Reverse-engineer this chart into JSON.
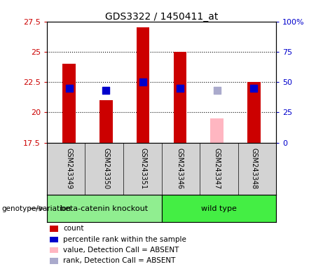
{
  "title": "GDS3322 / 1450411_at",
  "samples": [
    "GSM243349",
    "GSM243350",
    "GSM243351",
    "GSM243346",
    "GSM243347",
    "GSM243348"
  ],
  "count_values": [
    24.0,
    21.0,
    27.0,
    25.0,
    null,
    22.5
  ],
  "rank_values": [
    22.0,
    21.8,
    22.5,
    22.0,
    null,
    22.0
  ],
  "absent_value": [
    null,
    null,
    null,
    null,
    19.5,
    null
  ],
  "absent_rank": [
    null,
    null,
    null,
    null,
    21.8,
    null
  ],
  "ylim_left": [
    17.5,
    27.5
  ],
  "ylim_right": [
    0,
    100
  ],
  "yticks_left": [
    17.5,
    20.0,
    22.5,
    25.0,
    27.5
  ],
  "yticks_right": [
    0,
    25,
    50,
    75,
    100
  ],
  "ytick_labels_left": [
    "17.5",
    "20",
    "22.5",
    "25",
    "27.5"
  ],
  "ytick_labels_right": [
    "0",
    "25",
    "50",
    "75",
    "100%"
  ],
  "count_color": "#CC0000",
  "rank_color": "#0000CC",
  "absent_value_color": "#FFB6C1",
  "absent_rank_color": "#AAAACC",
  "bar_width": 0.35,
  "marker_size": 50,
  "grid_color": "black",
  "bg_plot": "#FFFFFF",
  "bg_table": "#D3D3D3",
  "group_colors": {
    "beta-catenin knockout": "#90EE90",
    "wild type": "#44EE44"
  },
  "legend_items": [
    {
      "label": "count",
      "color": "#CC0000"
    },
    {
      "label": "percentile rank within the sample",
      "color": "#0000CC"
    },
    {
      "label": "value, Detection Call = ABSENT",
      "color": "#FFB6C1"
    },
    {
      "label": "rank, Detection Call = ABSENT",
      "color": "#AAAACC"
    }
  ]
}
